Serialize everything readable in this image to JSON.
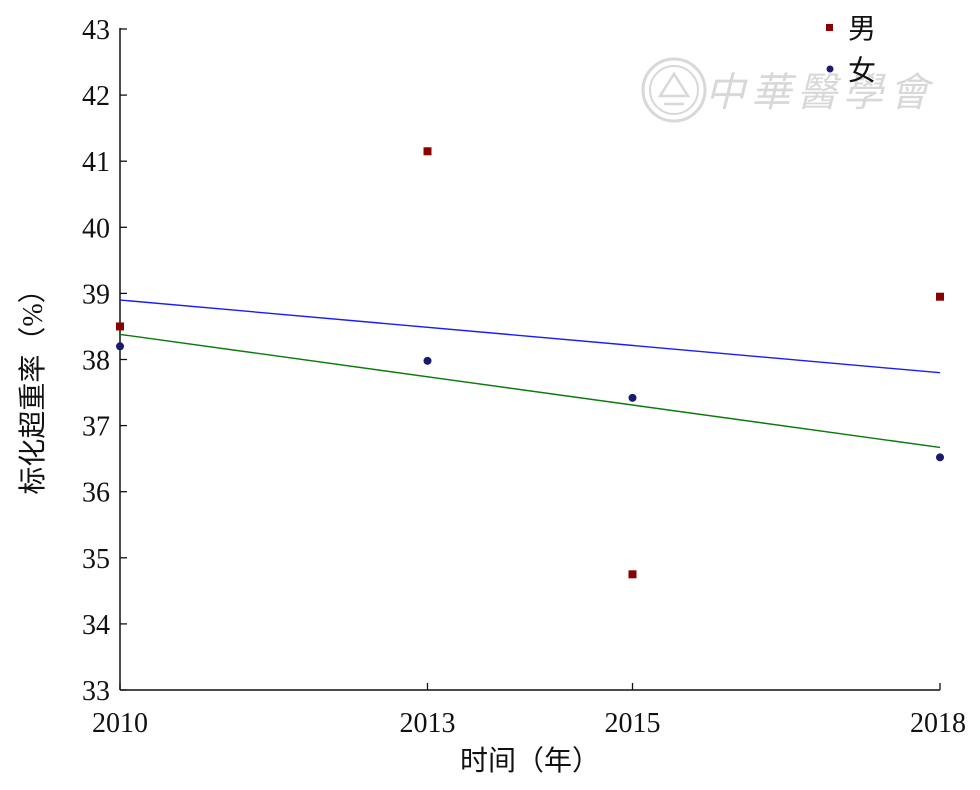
{
  "chart_data": {
    "type": "scatter",
    "title": "",
    "xlabel": "时间（年）",
    "ylabel": "标化超重率（%）",
    "x_ticks": [
      2010,
      2013,
      2015,
      2018
    ],
    "xlim": [
      2010,
      2018
    ],
    "ylim": [
      33,
      43
    ],
    "y_ticks": [
      33,
      34,
      35,
      36,
      37,
      38,
      39,
      40,
      41,
      42,
      43
    ],
    "grid": false,
    "legend_position": "top-right",
    "series": [
      {
        "name": "男",
        "color": "#8b0000",
        "marker": "square",
        "points": [
          {
            "x": 2010,
            "y": 38.5
          },
          {
            "x": 2013,
            "y": 41.15
          },
          {
            "x": 2015,
            "y": 34.75
          },
          {
            "x": 2018,
            "y": 38.95
          }
        ],
        "trend": {
          "color": "#1a1aff",
          "start": {
            "x": 2010,
            "y": 38.9
          },
          "end": {
            "x": 2018,
            "y": 37.8
          }
        }
      },
      {
        "name": "女",
        "color": "#1a1a6e",
        "marker": "circle",
        "points": [
          {
            "x": 2010,
            "y": 38.2
          },
          {
            "x": 2013,
            "y": 37.98
          },
          {
            "x": 2015,
            "y": 37.42
          },
          {
            "x": 2018,
            "y": 36.52
          }
        ],
        "trend": {
          "color": "#0a7a0a",
          "start": {
            "x": 2010,
            "y": 38.38
          },
          "end": {
            "x": 2018,
            "y": 36.67
          }
        }
      }
    ]
  },
  "watermark": {
    "text": "中華醫學會",
    "color": "#d8d8d8"
  }
}
